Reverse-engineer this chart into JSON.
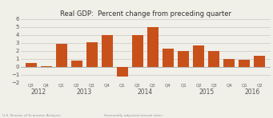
{
  "title": "Real GDP:  Percent change from preceding quarter",
  "bar_color": "#C8511B",
  "background_color": "#F0EFE8",
  "grid_color": "#C8C8C8",
  "labels": [
    "Q3",
    "Q4",
    "Q1",
    "Q2",
    "Q3",
    "Q4",
    "Q1",
    "Q2",
    "Q3",
    "Q4",
    "Q1",
    "Q2",
    "Q3",
    "Q4",
    "Q1",
    "Q2"
  ],
  "year_labels": [
    "2012",
    "2013",
    "2014",
    "2015",
    "2016"
  ],
  "year_positions": [
    0.5,
    3.5,
    7.5,
    11.5,
    14.5
  ],
  "values": [
    0.5,
    0.1,
    2.9,
    0.8,
    3.1,
    4.0,
    -1.2,
    4.0,
    5.0,
    2.3,
    2.0,
    2.7,
    2.0,
    1.0,
    0.9,
    1.4
  ],
  "ylim": [
    -2,
    6
  ],
  "yticks": [
    -2,
    -1,
    0,
    1,
    2,
    3,
    4,
    5,
    6
  ],
  "footer_left": "U.S. Bureau of Economic Analysis",
  "footer_right": "Seasonally adjusted annual rates"
}
